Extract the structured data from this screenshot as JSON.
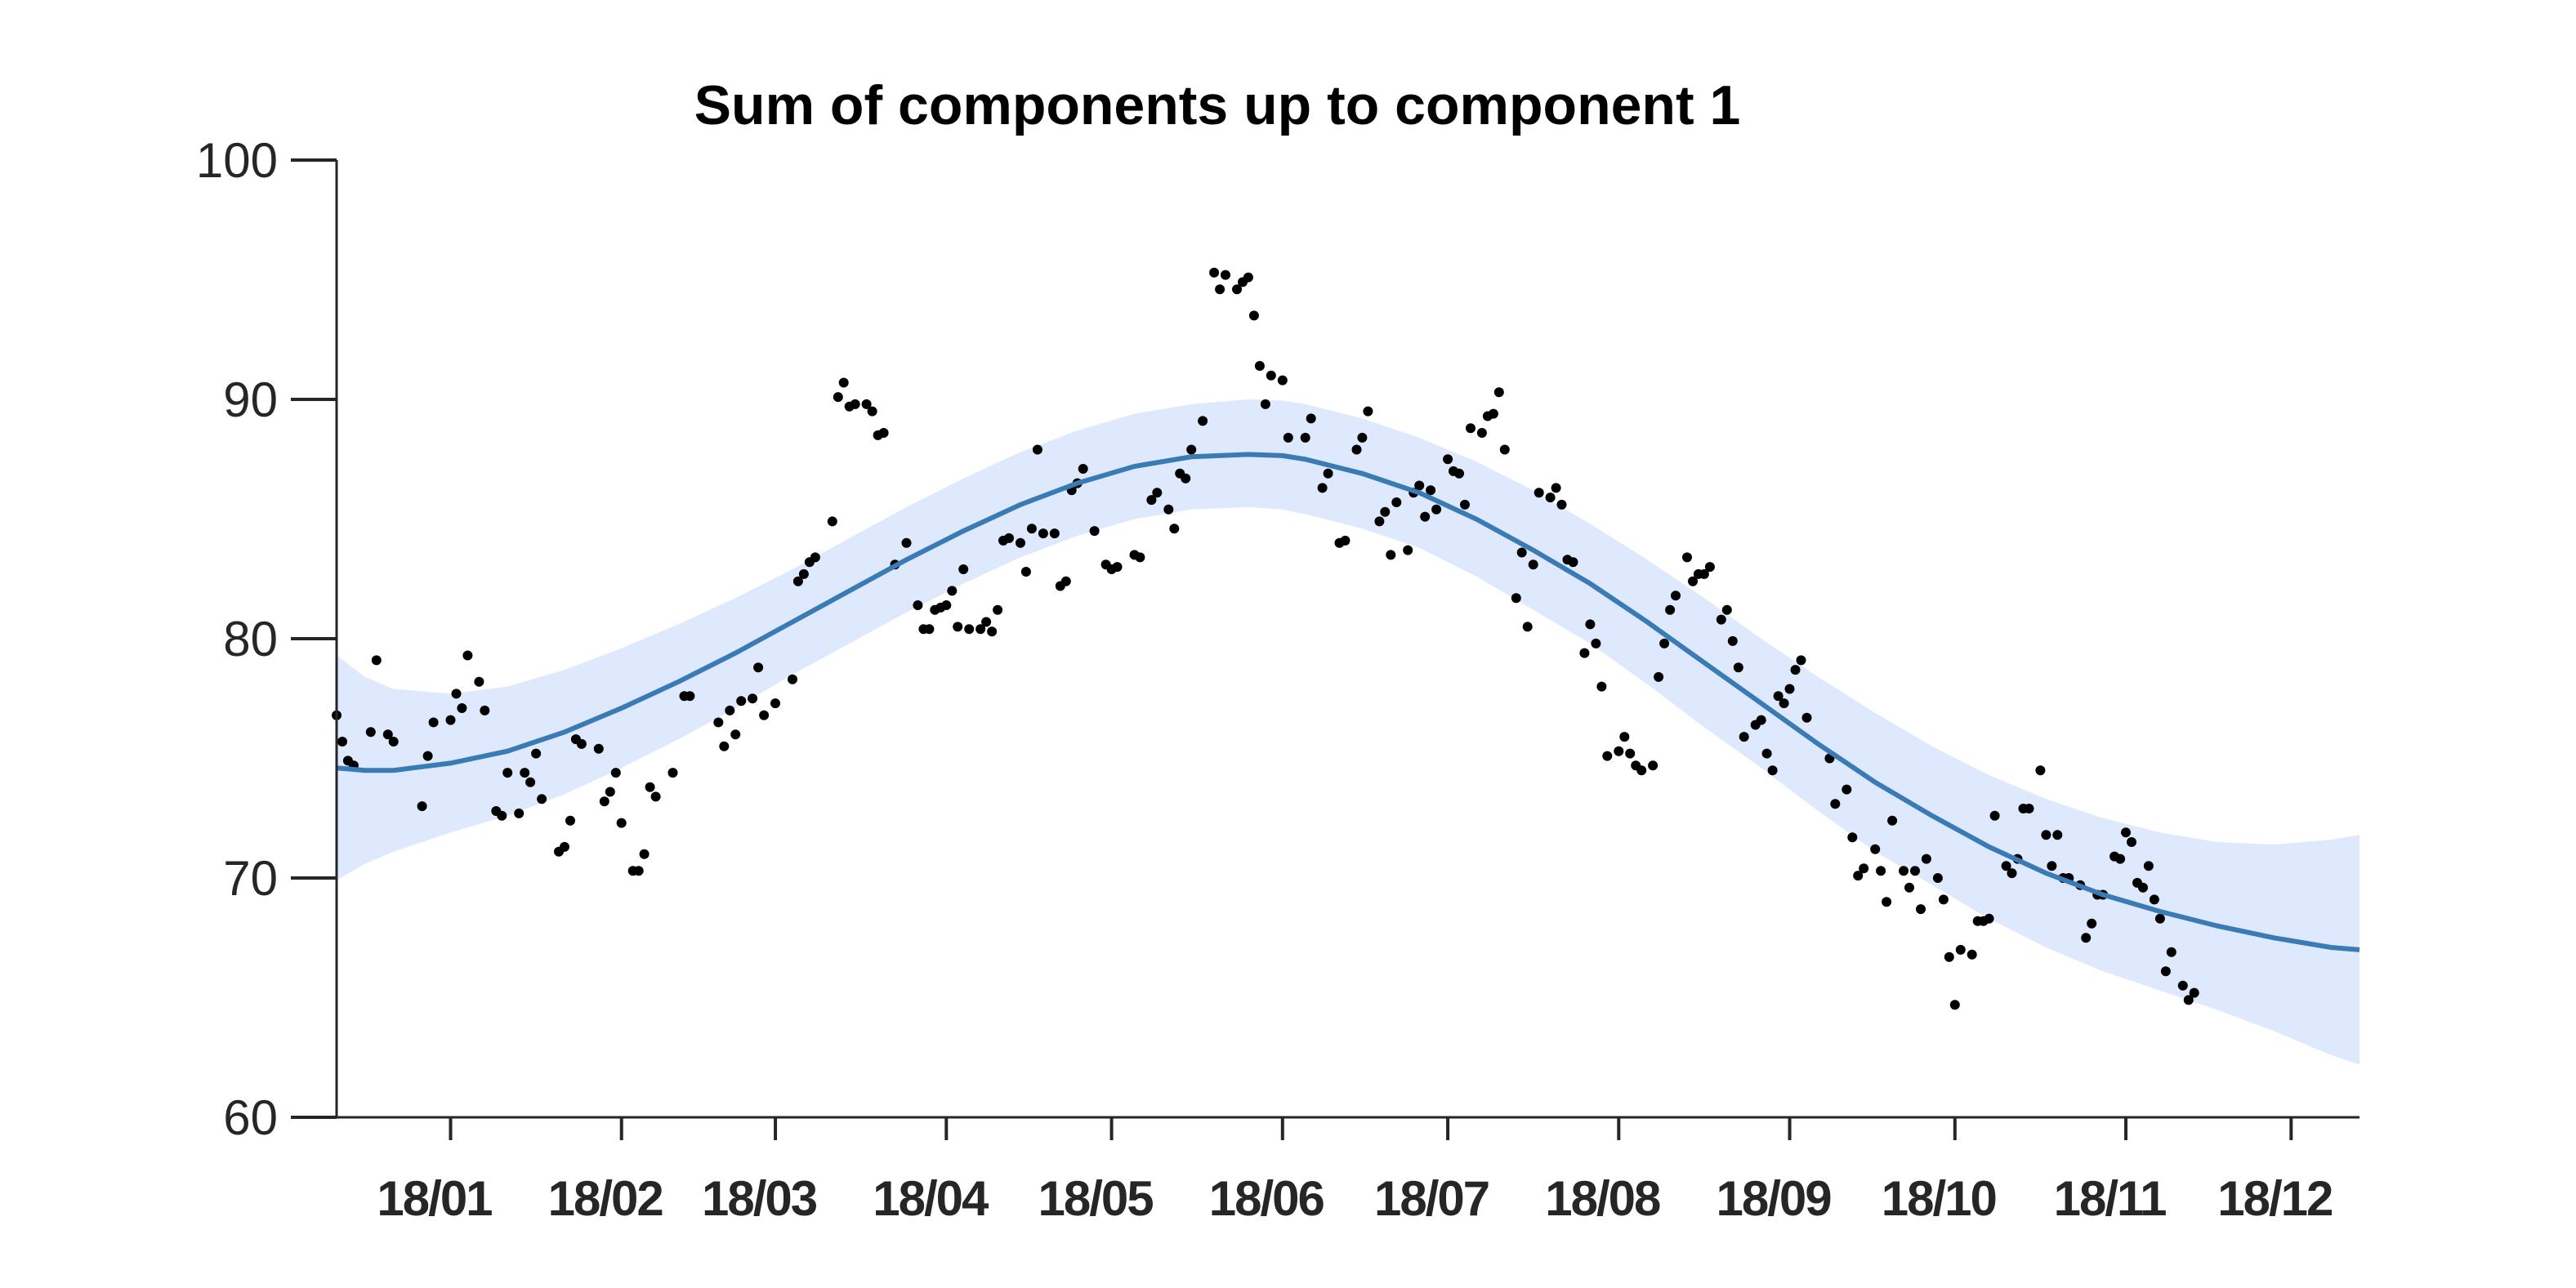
{
  "chart_data": {
    "type": "line",
    "title": "Sum of components up to component 1",
    "xlabel": "",
    "ylabel": "",
    "ylim": [
      60,
      100
    ],
    "yticks": [
      60,
      70,
      80,
      90,
      100
    ],
    "xlim": [
      -20,
      335
    ],
    "x_ticks": [
      {
        "day": 0,
        "label": "18/01"
      },
      {
        "day": 30,
        "label": "18/02"
      },
      {
        "day": 57,
        "label": "18/03"
      },
      {
        "day": 87,
        "label": "18/04"
      },
      {
        "day": 116,
        "label": "18/05"
      },
      {
        "day": 146,
        "label": "18/06"
      },
      {
        "day": 175,
        "label": "18/07"
      },
      {
        "day": 205,
        "label": "18/08"
      },
      {
        "day": 235,
        "label": "18/09"
      },
      {
        "day": 264,
        "label": "18/10"
      },
      {
        "day": 294,
        "label": "18/11"
      },
      {
        "day": 323,
        "label": "18/12"
      }
    ],
    "colors": {
      "line": "#3a7bb5",
      "band": "#dfe9fd",
      "points": "#000000"
    },
    "fit": {
      "x": [
        -20,
        -15,
        -10,
        0,
        10,
        20,
        30,
        40,
        50,
        60,
        70,
        80,
        90,
        100,
        110,
        120,
        130,
        140,
        146,
        150,
        160,
        170,
        180,
        190,
        200,
        210,
        220,
        230,
        240,
        250,
        260,
        270,
        280,
        290,
        300,
        310,
        320,
        330,
        335
      ],
      "y": [
        74.6,
        74.5,
        74.5,
        74.8,
        75.3,
        76.1,
        77.1,
        78.2,
        79.4,
        80.7,
        82.0,
        83.3,
        84.5,
        85.6,
        86.5,
        87.2,
        87.6,
        87.7,
        87.65,
        87.5,
        86.9,
        86.1,
        85.0,
        83.7,
        82.3,
        80.7,
        79.0,
        77.3,
        75.6,
        74.0,
        72.6,
        71.3,
        70.2,
        69.3,
        68.6,
        68.0,
        67.5,
        67.1,
        67.0
      ],
      "upper": [
        79.3,
        78.4,
        77.9,
        77.7,
        78.0,
        78.7,
        79.6,
        80.6,
        81.7,
        82.9,
        84.2,
        85.5,
        86.7,
        87.8,
        88.7,
        89.4,
        89.8,
        90.0,
        89.95,
        89.8,
        89.2,
        88.4,
        87.4,
        86.2,
        84.8,
        83.3,
        81.7,
        80.0,
        78.4,
        76.9,
        75.5,
        74.3,
        73.3,
        72.5,
        71.9,
        71.5,
        71.4,
        71.6,
        71.8
      ],
      "lower": [
        69.9,
        70.6,
        71.1,
        71.9,
        72.6,
        73.5,
        74.6,
        75.8,
        77.1,
        78.5,
        79.8,
        81.1,
        82.3,
        83.4,
        84.3,
        85.0,
        85.4,
        85.5,
        85.4,
        85.2,
        84.6,
        83.8,
        82.6,
        81.2,
        79.8,
        78.1,
        76.3,
        74.6,
        72.8,
        71.1,
        69.7,
        68.3,
        67.1,
        66.1,
        65.3,
        64.5,
        63.6,
        62.6,
        62.2
      ]
    },
    "points": [
      [
        -20,
        76.8
      ],
      [
        -19,
        75.7
      ],
      [
        -18,
        74.9
      ],
      [
        -17,
        74.7
      ],
      [
        -14,
        76.1
      ],
      [
        -13,
        79.1
      ],
      [
        -11,
        76.0
      ],
      [
        -10,
        75.7
      ],
      [
        -5,
        73.0
      ],
      [
        -4,
        75.1
      ],
      [
        -3,
        76.5
      ],
      [
        0,
        76.6
      ],
      [
        1,
        77.7
      ],
      [
        2,
        77.1
      ],
      [
        3,
        79.3
      ],
      [
        5,
        78.2
      ],
      [
        6,
        77.0
      ],
      [
        8,
        72.8
      ],
      [
        9,
        72.6
      ],
      [
        10,
        74.4
      ],
      [
        12,
        72.7
      ],
      [
        13,
        74.4
      ],
      [
        14,
        74.0
      ],
      [
        15,
        75.2
      ],
      [
        16,
        73.3
      ],
      [
        19,
        71.1
      ],
      [
        20,
        71.3
      ],
      [
        21,
        72.4
      ],
      [
        22,
        75.8
      ],
      [
        23,
        75.6
      ],
      [
        26,
        75.4
      ],
      [
        27,
        73.2
      ],
      [
        28,
        73.6
      ],
      [
        29,
        74.4
      ],
      [
        30,
        72.3
      ],
      [
        32,
        70.3
      ],
      [
        33,
        70.3
      ],
      [
        34,
        71.0
      ],
      [
        35,
        73.8
      ],
      [
        36,
        73.4
      ],
      [
        39,
        74.4
      ],
      [
        41,
        77.6
      ],
      [
        42,
        77.6
      ],
      [
        47,
        76.5
      ],
      [
        48,
        75.5
      ],
      [
        49,
        77.0
      ],
      [
        50,
        76.0
      ],
      [
        51,
        77.4
      ],
      [
        53,
        77.5
      ],
      [
        54,
        78.8
      ],
      [
        55,
        76.8
      ],
      [
        57,
        77.3
      ],
      [
        60,
        78.3
      ],
      [
        61,
        82.4
      ],
      [
        62,
        82.7
      ],
      [
        63,
        83.2
      ],
      [
        64,
        83.4
      ],
      [
        67,
        84.9
      ],
      [
        68,
        90.1
      ],
      [
        69,
        90.7
      ],
      [
        70,
        89.7
      ],
      [
        71,
        89.8
      ],
      [
        73,
        89.8
      ],
      [
        74,
        89.5
      ],
      [
        75,
        88.5
      ],
      [
        76,
        88.6
      ],
      [
        78,
        83.1
      ],
      [
        80,
        84.0
      ],
      [
        82,
        81.4
      ],
      [
        83,
        80.4
      ],
      [
        84,
        80.4
      ],
      [
        85,
        81.2
      ],
      [
        86,
        81.3
      ],
      [
        87,
        81.4
      ],
      [
        88,
        82.0
      ],
      [
        89,
        80.5
      ],
      [
        90,
        82.9
      ],
      [
        91,
        80.4
      ],
      [
        93,
        80.4
      ],
      [
        94,
        80.7
      ],
      [
        95,
        80.3
      ],
      [
        96,
        81.2
      ],
      [
        97,
        84.1
      ],
      [
        98,
        84.2
      ],
      [
        100,
        84.0
      ],
      [
        101,
        82.8
      ],
      [
        102,
        84.6
      ],
      [
        103,
        87.9
      ],
      [
        104,
        84.4
      ],
      [
        106,
        84.4
      ],
      [
        107,
        82.2
      ],
      [
        108,
        82.4
      ],
      [
        109,
        86.2
      ],
      [
        110,
        86.5
      ],
      [
        111,
        87.1
      ],
      [
        113,
        84.5
      ],
      [
        115,
        83.1
      ],
      [
        116,
        82.9
      ],
      [
        117,
        83.0
      ],
      [
        120,
        83.5
      ],
      [
        121,
        83.4
      ],
      [
        123,
        85.8
      ],
      [
        124,
        86.1
      ],
      [
        126,
        85.4
      ],
      [
        127,
        84.6
      ],
      [
        128,
        86.9
      ],
      [
        129,
        86.7
      ],
      [
        130,
        87.9
      ],
      [
        132,
        89.1
      ],
      [
        134,
        95.3
      ],
      [
        135,
        94.6
      ],
      [
        136,
        95.2
      ],
      [
        138,
        94.6
      ],
      [
        139,
        94.9
      ],
      [
        140,
        95.1
      ],
      [
        141,
        93.5
      ],
      [
        142,
        91.4
      ],
      [
        143,
        89.8
      ],
      [
        144,
        91.0
      ],
      [
        146,
        90.8
      ],
      [
        147,
        88.4
      ],
      [
        150,
        88.4
      ],
      [
        151,
        89.2
      ],
      [
        153,
        86.3
      ],
      [
        154,
        86.9
      ],
      [
        156,
        84.0
      ],
      [
        157,
        84.1
      ],
      [
        159,
        87.9
      ],
      [
        160,
        88.4
      ],
      [
        161,
        89.5
      ],
      [
        163,
        84.9
      ],
      [
        164,
        85.3
      ],
      [
        165,
        83.5
      ],
      [
        166,
        85.7
      ],
      [
        168,
        83.7
      ],
      [
        169,
        86.1
      ],
      [
        170,
        86.4
      ],
      [
        171,
        85.1
      ],
      [
        172,
        86.2
      ],
      [
        173,
        85.4
      ],
      [
        175,
        87.5
      ],
      [
        176,
        87.0
      ],
      [
        177,
        86.9
      ],
      [
        178,
        85.6
      ],
      [
        179,
        88.8
      ],
      [
        181,
        88.6
      ],
      [
        182,
        89.3
      ],
      [
        183,
        89.4
      ],
      [
        184,
        90.3
      ],
      [
        185,
        87.9
      ],
      [
        187,
        81.7
      ],
      [
        188,
        83.6
      ],
      [
        189,
        80.5
      ],
      [
        190,
        83.1
      ],
      [
        191,
        86.1
      ],
      [
        193,
        85.9
      ],
      [
        194,
        86.3
      ],
      [
        195,
        85.6
      ],
      [
        196,
        83.3
      ],
      [
        197,
        83.2
      ],
      [
        199,
        79.4
      ],
      [
        200,
        80.6
      ],
      [
        201,
        79.8
      ],
      [
        202,
        78.0
      ],
      [
        203,
        75.1
      ],
      [
        205,
        75.3
      ],
      [
        206,
        75.9
      ],
      [
        207,
        75.2
      ],
      [
        208,
        74.7
      ],
      [
        209,
        74.5
      ],
      [
        211,
        74.7
      ],
      [
        212,
        78.4
      ],
      [
        213,
        79.8
      ],
      [
        214,
        81.2
      ],
      [
        215,
        81.8
      ],
      [
        217,
        83.4
      ],
      [
        218,
        82.4
      ],
      [
        219,
        82.7
      ],
      [
        220,
        82.7
      ],
      [
        221,
        83.0
      ],
      [
        223,
        80.8
      ],
      [
        224,
        81.2
      ],
      [
        225,
        79.9
      ],
      [
        226,
        78.8
      ],
      [
        227,
        75.9
      ],
      [
        229,
        76.4
      ],
      [
        230,
        76.6
      ],
      [
        231,
        75.2
      ],
      [
        232,
        74.5
      ],
      [
        233,
        77.6
      ],
      [
        234,
        77.3
      ],
      [
        235,
        77.9
      ],
      [
        236,
        78.7
      ],
      [
        237,
        79.1
      ],
      [
        238,
        76.7
      ],
      [
        242,
        75.0
      ],
      [
        243,
        73.1
      ],
      [
        245,
        73.7
      ],
      [
        246,
        71.7
      ],
      [
        247,
        70.1
      ],
      [
        248,
        70.4
      ],
      [
        250,
        71.2
      ],
      [
        251,
        70.3
      ],
      [
        252,
        69.0
      ],
      [
        253,
        72.4
      ],
      [
        255,
        70.3
      ],
      [
        256,
        69.6
      ],
      [
        257,
        70.3
      ],
      [
        258,
        68.7
      ],
      [
        259,
        70.8
      ],
      [
        261,
        70.0
      ],
      [
        262,
        69.1
      ],
      [
        263,
        66.7
      ],
      [
        264,
        64.7
      ],
      [
        265,
        67.0
      ],
      [
        267,
        66.8
      ],
      [
        268,
        68.2
      ],
      [
        269,
        68.2
      ],
      [
        270,
        68.3
      ],
      [
        271,
        72.6
      ],
      [
        273,
        70.5
      ],
      [
        274,
        70.2
      ],
      [
        275,
        70.8
      ],
      [
        276,
        72.9
      ],
      [
        277,
        72.9
      ],
      [
        279,
        74.5
      ],
      [
        280,
        71.8
      ],
      [
        281,
        70.5
      ],
      [
        282,
        71.8
      ],
      [
        283,
        70.0
      ],
      [
        284,
        70.0
      ],
      [
        286,
        69.7
      ],
      [
        287,
        67.5
      ],
      [
        288,
        68.1
      ],
      [
        289,
        69.3
      ],
      [
        290,
        69.3
      ],
      [
        292,
        70.9
      ],
      [
        293,
        70.8
      ],
      [
        294,
        71.9
      ],
      [
        295,
        71.5
      ],
      [
        296,
        69.8
      ],
      [
        297,
        69.6
      ],
      [
        298,
        70.5
      ],
      [
        299,
        69.1
      ],
      [
        300,
        68.3
      ],
      [
        301,
        66.1
      ],
      [
        302,
        66.9
      ],
      [
        304,
        65.5
      ],
      [
        305,
        64.9
      ],
      [
        306,
        65.2
      ]
    ]
  }
}
